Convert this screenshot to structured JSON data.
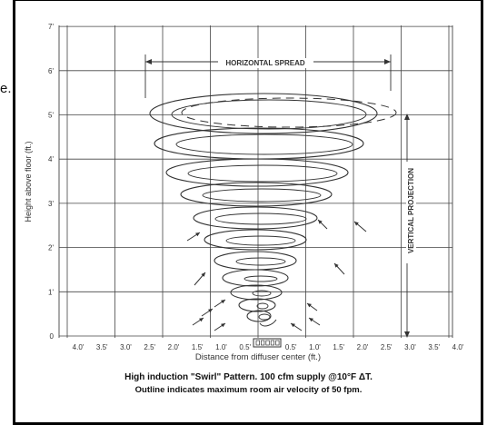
{
  "edge_fragment": "e.",
  "y_axis": {
    "label": "Height above floor (ft.)",
    "ticks": [
      "0",
      "1'",
      "2'",
      "3'",
      "4'",
      "5'",
      "6'",
      "7'"
    ]
  },
  "x_axis": {
    "label": "Distance from diffuser center (ft.)",
    "ticks_left": [
      "4.0'",
      "3.5'",
      "3.0'",
      "2.5'",
      "2.0'",
      "1.5'",
      "1.0'",
      "0.5'"
    ],
    "ticks_right": [
      "0.5'",
      "1.0'",
      "1.5'",
      "2.0'",
      "2.5'",
      "3.0'",
      "3.5'",
      "4.0'"
    ]
  },
  "annotations": {
    "horizontal": "HORIZONTAL SPREAD",
    "vertical": "VERTICAL PROJECTION"
  },
  "caption": {
    "line1": "High induction \"Swirl\" Pattern. 100 cfm supply @10°F ΔT.",
    "line2": "Outline indicates maximum room air velocity of 50 fpm."
  },
  "colors": {
    "ink": "#333333",
    "grid": "#444444",
    "frame": "#000000"
  }
}
